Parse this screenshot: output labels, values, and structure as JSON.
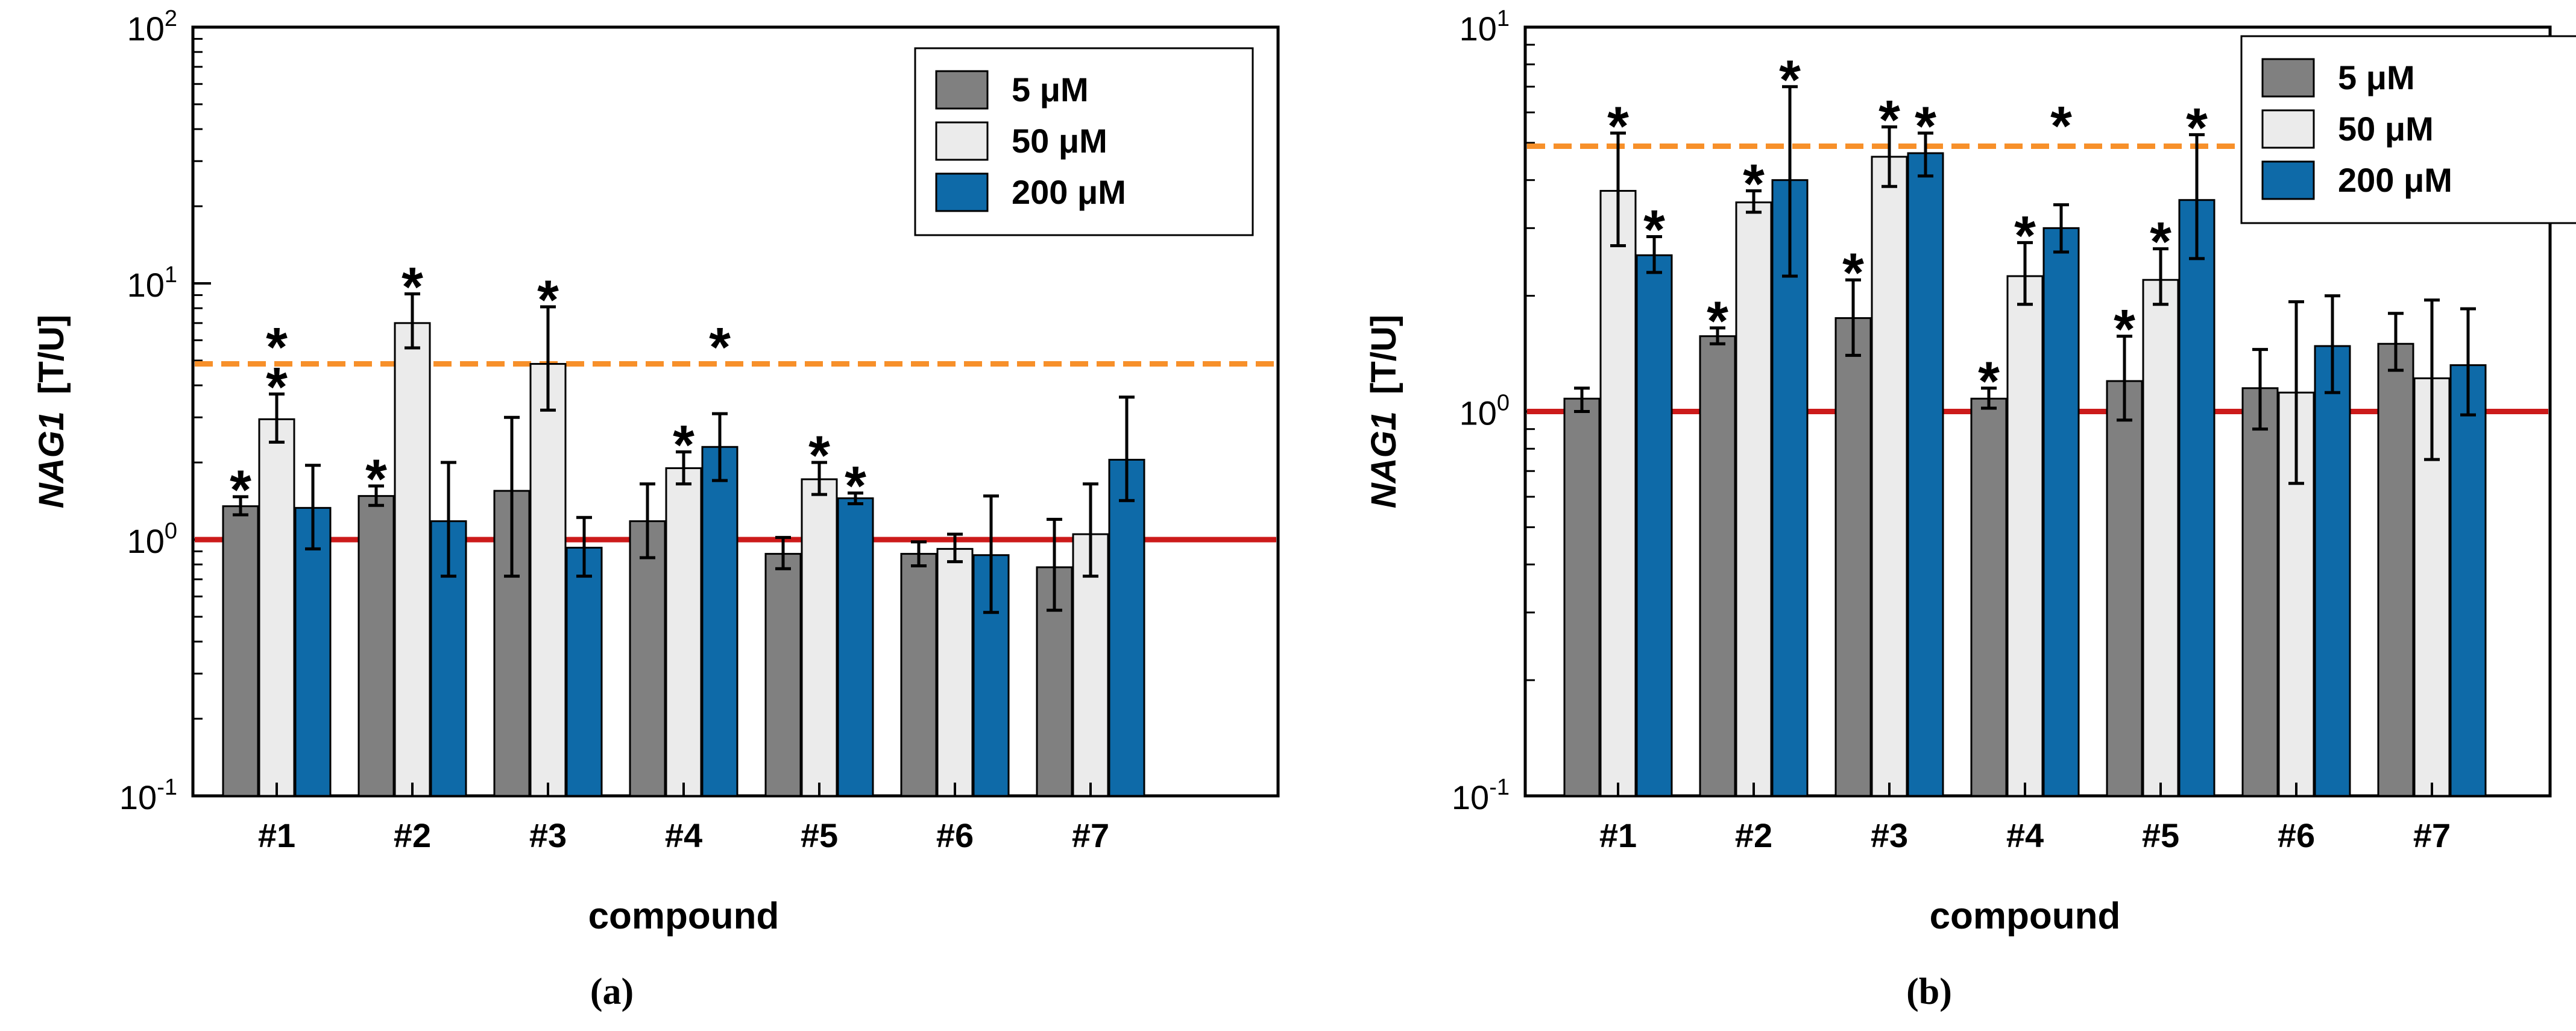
{
  "figure": {
    "panel_captions": [
      "(a)",
      "(b)"
    ]
  },
  "colors": {
    "bar_5uM": "#808080",
    "bar_50uM": "#ebebeb",
    "bar_200uM": "#0e6aa8",
    "baseline": "#cc1a1a",
    "threshold": "#f7902a",
    "axis": "#000000"
  },
  "chart_data": [
    {
      "type": "bar",
      "panel": "a",
      "caption": "(a)",
      "xlabel": "compound",
      "ylabel_gene": "NAG1",
      "ylabel_unit": "[T/U]",
      "yscale": "log",
      "ylim": [
        0.1,
        100
      ],
      "yticks": [
        {
          "value": 0.1,
          "base": "10",
          "exp": "-1"
        },
        {
          "value": 1,
          "base": "10",
          "exp": "0"
        },
        {
          "value": 10,
          "base": "10",
          "exp": "1"
        },
        {
          "value": 100,
          "base": "10",
          "exp": "2"
        }
      ],
      "categories": [
        "#1",
        "#2",
        "#3",
        "#4",
        "#5",
        "#6",
        "#7"
      ],
      "series": [
        {
          "name": "5 μM",
          "color_key": "bar_5uM",
          "values": [
            1.35,
            1.48,
            1.55,
            1.18,
            0.88,
            0.88,
            0.78
          ],
          "err_low": [
            1.25,
            1.36,
            0.72,
            0.85,
            0.77,
            0.79,
            0.53
          ],
          "err_high": [
            1.47,
            1.62,
            3.0,
            1.65,
            1.02,
            0.98,
            1.2
          ],
          "significant": [
            true,
            true,
            false,
            false,
            false,
            false,
            false
          ]
        },
        {
          "name": "50 μM",
          "color_key": "bar_50uM",
          "values": [
            2.95,
            7.0,
            4.85,
            1.9,
            1.72,
            0.92,
            1.05
          ],
          "err_low": [
            2.4,
            5.6,
            3.2,
            1.65,
            1.5,
            0.82,
            0.72
          ],
          "err_high": [
            3.7,
            9.1,
            8.1,
            2.2,
            2.0,
            1.05,
            1.65
          ],
          "significant": [
            true,
            true,
            true,
            true,
            true,
            false,
            false
          ]
        },
        {
          "name": "200 μM",
          "color_key": "bar_200uM",
          "values": [
            1.33,
            1.18,
            0.93,
            2.3,
            1.45,
            0.87,
            2.05
          ],
          "err_low": [
            0.92,
            0.72,
            0.72,
            1.7,
            1.38,
            0.52,
            1.42
          ],
          "err_high": [
            1.95,
            2.0,
            1.22,
            3.1,
            1.52,
            1.48,
            3.6
          ],
          "significant": [
            false,
            false,
            false,
            false,
            true,
            false,
            false
          ]
        }
      ],
      "extra_asterisks": [
        {
          "category": "#1",
          "at_series": "50 μM",
          "y": 5.9
        },
        {
          "category": "#4",
          "at_series": "200 μM",
          "y": 5.9
        }
      ],
      "asterisk_symbol": "*",
      "reference_lines": [
        {
          "y": 1.0,
          "style": "solid",
          "color_key": "baseline"
        },
        {
          "y": 4.85,
          "style": "dashed",
          "color_key": "threshold"
        }
      ],
      "legend": {
        "position": "top-right",
        "entries": [
          "5 μM",
          "50 μM",
          "200 μM"
        ]
      }
    },
    {
      "type": "bar",
      "panel": "b",
      "caption": "(b)",
      "xlabel": "compound",
      "ylabel_gene": "NAG1",
      "ylabel_unit": "[T/U]",
      "yscale": "log",
      "ylim": [
        0.1,
        10
      ],
      "yticks": [
        {
          "value": 0.1,
          "base": "10",
          "exp": "-1"
        },
        {
          "value": 1,
          "base": "10",
          "exp": "0"
        },
        {
          "value": 10,
          "base": "10",
          "exp": "1"
        }
      ],
      "categories": [
        "#1",
        "#2",
        "#3",
        "#4",
        "#5",
        "#6",
        "#7"
      ],
      "series": [
        {
          "name": "5 μM",
          "color_key": "bar_5uM",
          "values": [
            1.08,
            1.57,
            1.75,
            1.08,
            1.2,
            1.15,
            1.5
          ],
          "err_low": [
            1.0,
            1.5,
            1.4,
            1.02,
            0.95,
            0.9,
            1.28
          ],
          "err_high": [
            1.15,
            1.65,
            2.2,
            1.15,
            1.57,
            1.45,
            1.8
          ],
          "significant": [
            false,
            true,
            true,
            true,
            true,
            false,
            false
          ]
        },
        {
          "name": "50 μM",
          "color_key": "bar_50uM",
          "values": [
            3.75,
            3.5,
            4.6,
            2.25,
            2.2,
            1.12,
            1.22
          ],
          "err_low": [
            2.7,
            3.3,
            3.85,
            1.9,
            1.9,
            0.65,
            0.75
          ],
          "err_high": [
            5.3,
            3.75,
            5.5,
            2.75,
            2.65,
            1.93,
            1.95
          ],
          "significant": [
            true,
            true,
            true,
            true,
            true,
            false,
            false
          ]
        },
        {
          "name": "200 μM",
          "color_key": "bar_200uM",
          "values": [
            2.55,
            4.0,
            4.7,
            3.0,
            3.55,
            1.48,
            1.32
          ],
          "err_low": [
            2.3,
            2.25,
            4.1,
            2.6,
            2.5,
            1.12,
            0.98
          ],
          "err_high": [
            2.85,
            7.0,
            5.3,
            3.45,
            5.25,
            2.0,
            1.85
          ],
          "significant": [
            true,
            true,
            true,
            false,
            true,
            false,
            false
          ]
        }
      ],
      "extra_asterisks": [
        {
          "category": "#4",
          "at_series": "200 μM",
          "y": 5.7
        }
      ],
      "asterisk_symbol": "*",
      "reference_lines": [
        {
          "y": 1.0,
          "style": "solid",
          "color_key": "baseline"
        },
        {
          "y": 4.9,
          "style": "dashed",
          "color_key": "threshold"
        }
      ],
      "legend": {
        "position": "top-right",
        "entries": [
          "5 μM",
          "50 μM",
          "200 μM"
        ]
      }
    }
  ]
}
